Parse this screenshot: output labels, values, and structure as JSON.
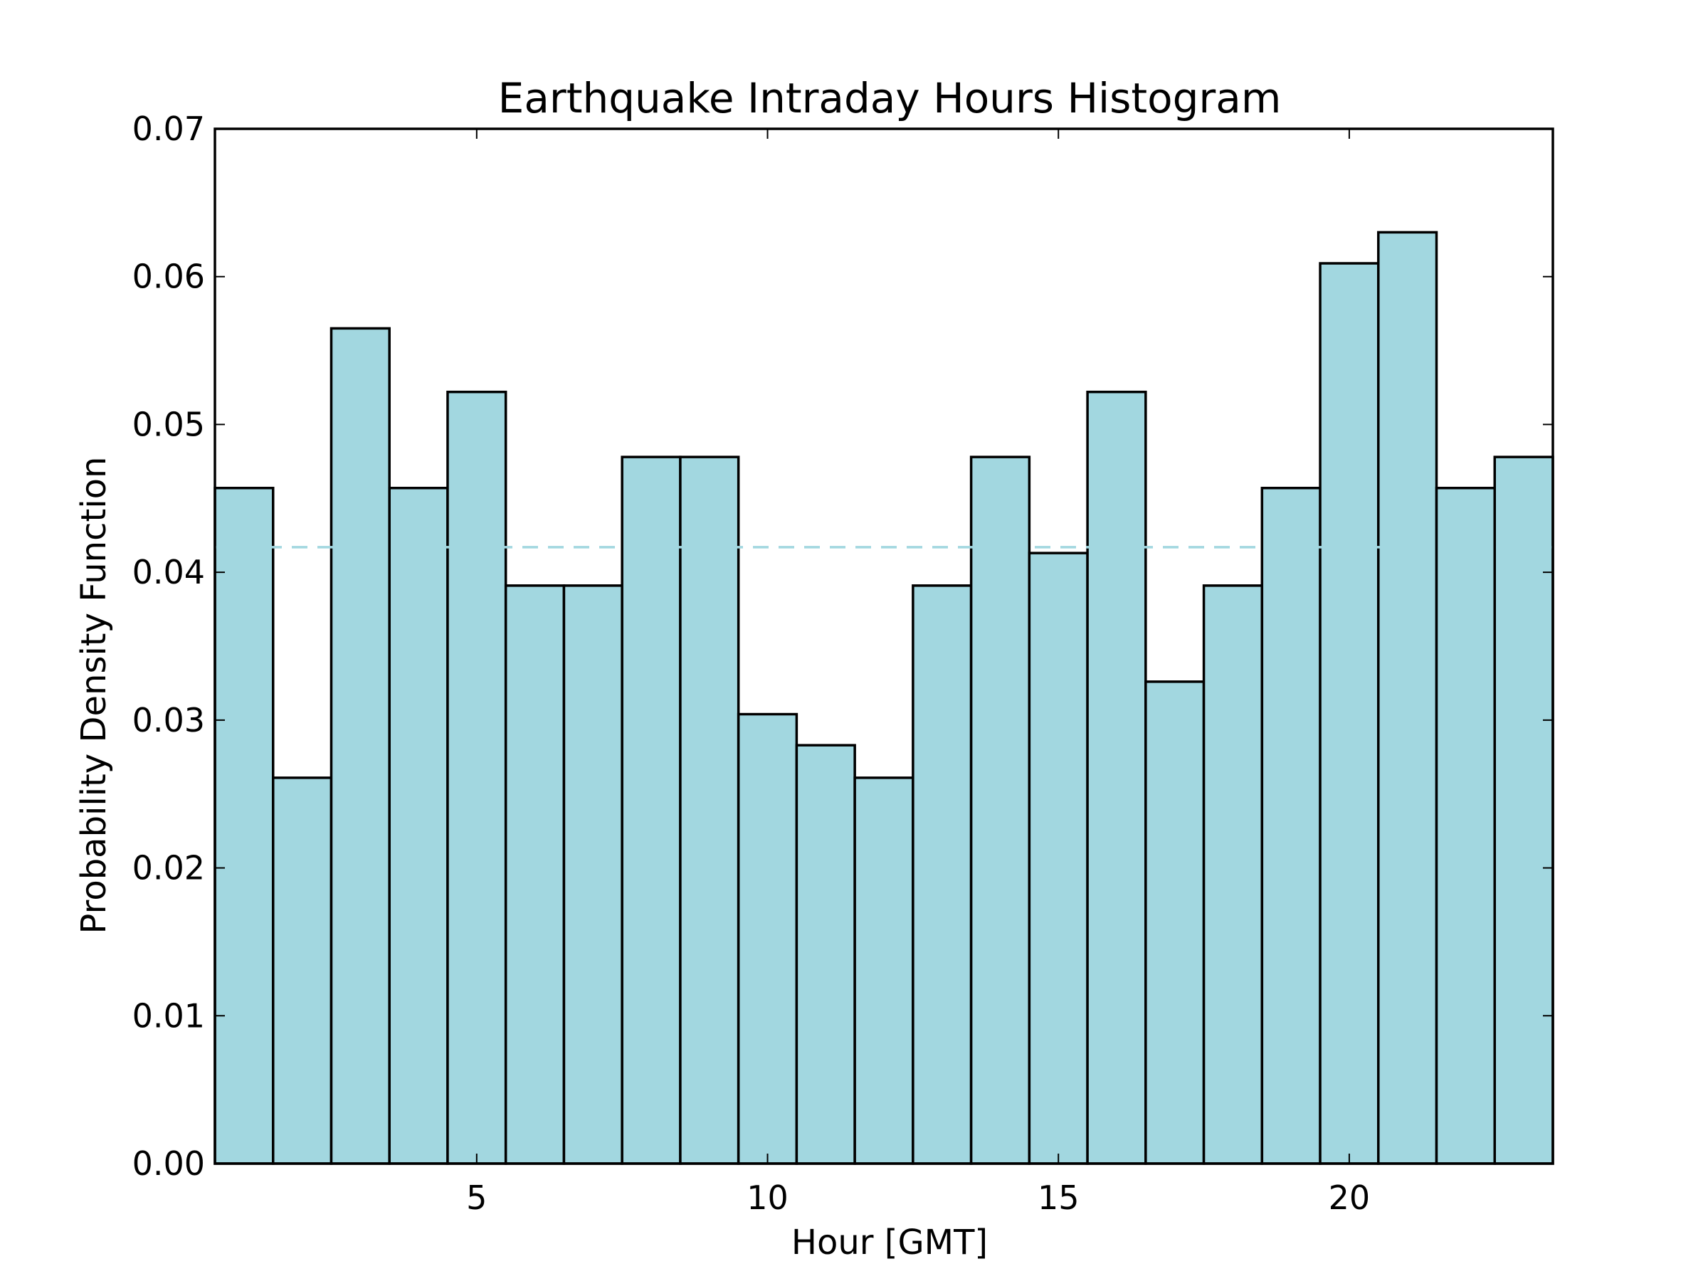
{
  "chart_data": {
    "type": "bar",
    "title": "Earthquake Intraday Hours Histogram",
    "xlabel": "Hour [GMT]",
    "ylabel": "Probability Density Function",
    "xlim": [
      0.5,
      23.5
    ],
    "ylim": [
      0,
      0.07
    ],
    "xticks": [
      5,
      10,
      15,
      20
    ],
    "xtick_labels": [
      "5",
      "10",
      "15",
      "20"
    ],
    "yticks": [
      0,
      0.01,
      0.02,
      0.03,
      0.04,
      0.05,
      0.06,
      0.07
    ],
    "ytick_labels": [
      "0.00",
      "0.01",
      "0.02",
      "0.03",
      "0.04",
      "0.05",
      "0.06",
      "0.07"
    ],
    "bin_width": 1,
    "x": [
      1,
      2,
      3,
      4,
      5,
      6,
      7,
      8,
      9,
      10,
      11,
      12,
      13,
      14,
      15,
      16,
      17,
      18,
      19,
      20,
      21,
      22,
      23
    ],
    "values": [
      0.0457,
      0.0261,
      0.0565,
      0.0457,
      0.0522,
      0.0391,
      0.0391,
      0.0478,
      0.0478,
      0.0304,
      0.0283,
      0.0261,
      0.0391,
      0.0478,
      0.0413,
      0.0522,
      0.0326,
      0.0391,
      0.0457,
      0.0609,
      0.063,
      0.0457,
      0.0478
    ],
    "uniform_reference": 0.0417,
    "bar_color": "#a2d7e0",
    "bar_edge_color": "#000000",
    "reference_line_color": "#a2d7e0",
    "grid": false,
    "legend": "none"
  }
}
